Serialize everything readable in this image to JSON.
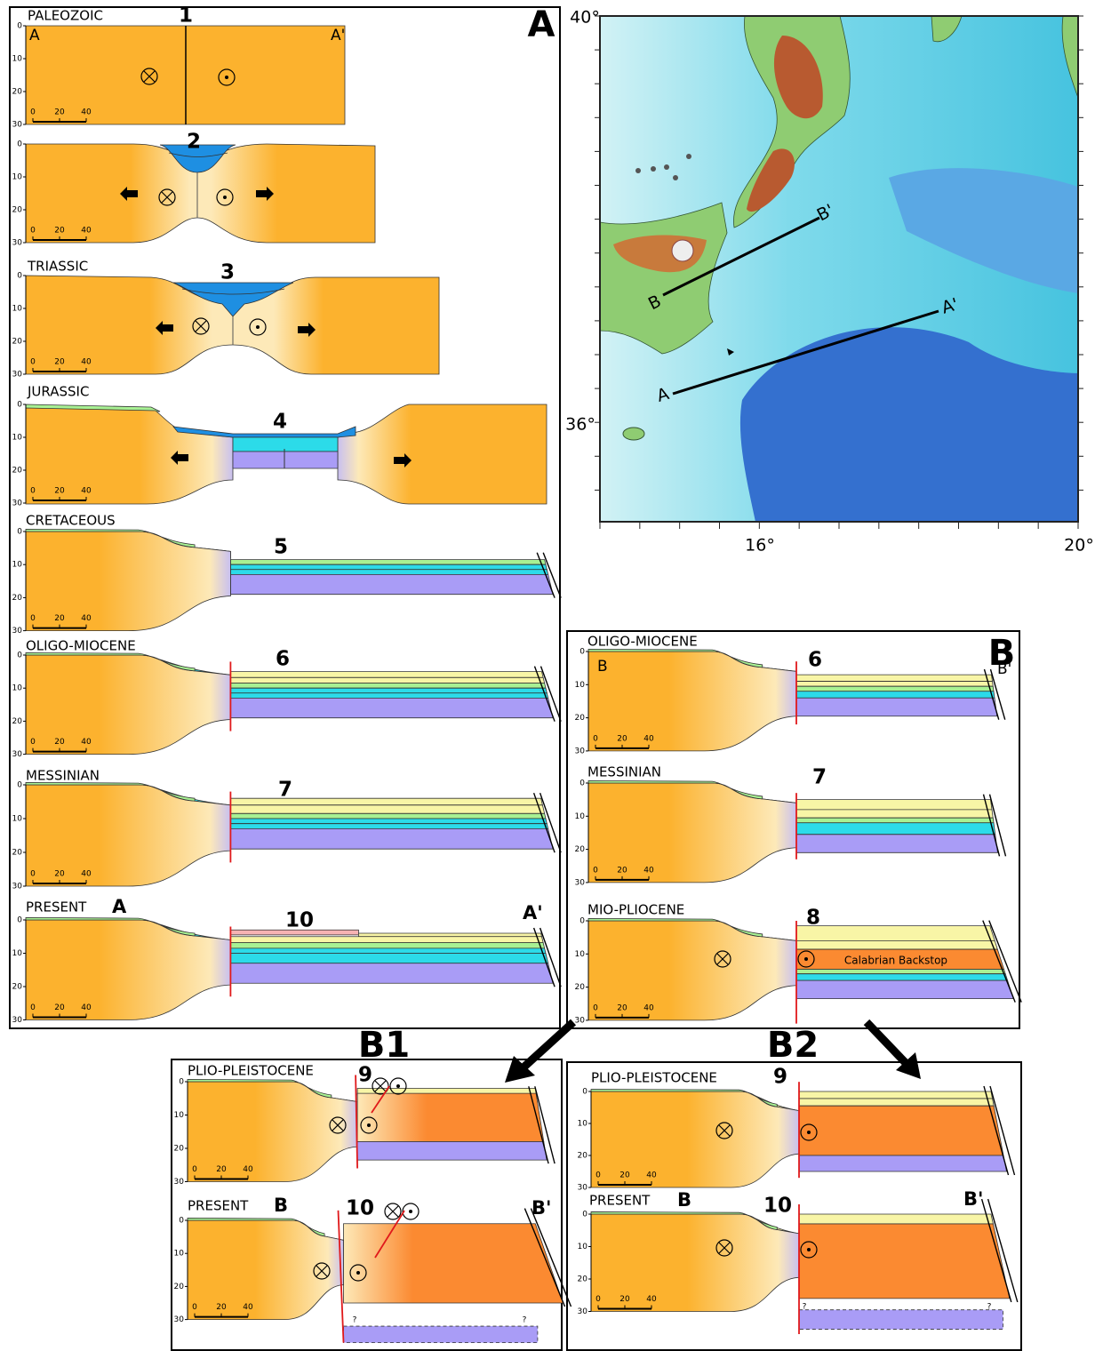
{
  "depth_ticks": [
    0,
    10,
    20,
    30
  ],
  "scale_ticks": [
    0,
    20,
    40
  ],
  "panel_a": {
    "label": "A",
    "sections": [
      {
        "era": "PALEOZOIC",
        "stage": 1,
        "left": "A",
        "right": "A'"
      },
      {
        "stage": 2
      },
      {
        "era": "TRIASSIC",
        "stage": 3
      },
      {
        "era": "JURASSIC",
        "stage": 4
      },
      {
        "era": "CRETACEOUS",
        "stage": 5
      },
      {
        "era": "OLIGO-MIOCENE",
        "stage": 6
      },
      {
        "era": "MESSINIAN",
        "stage": 7
      },
      {
        "era": "PRESENT",
        "left": "A",
        "stage": 10,
        "right": "A'"
      }
    ]
  },
  "map": {
    "lat_labels": [
      "40°",
      "36°"
    ],
    "lon_labels": [
      "16°",
      "20°"
    ],
    "profiles": [
      {
        "start": "B",
        "end": "B'"
      },
      {
        "start": "A",
        "end": "A'"
      }
    ]
  },
  "panel_b": {
    "label": "B",
    "sections": [
      {
        "era": "OLIGO-MIOCENE",
        "stage": 6,
        "left": "B",
        "right": "B'"
      },
      {
        "era": "MESSINIAN",
        "stage": 7
      },
      {
        "era": "MIO-PLIOCENE",
        "stage": 8,
        "unit": "Calabrian Backstop"
      }
    ]
  },
  "panel_b1": {
    "label": "B1",
    "sections": [
      {
        "era": "PLIO-PLEISTOCENE",
        "stage": 9
      },
      {
        "era": "PRESENT",
        "left": "B",
        "stage": 10,
        "right": "B'",
        "unknown": [
          "?",
          "?"
        ]
      }
    ]
  },
  "panel_b2": {
    "label": "B2",
    "sections": [
      {
        "era": "PLIO-PLEISTOCENE",
        "stage": 9
      },
      {
        "era": "PRESENT",
        "left": "B",
        "stage": 10,
        "right": "B'",
        "unknown": [
          "?",
          "?"
        ]
      }
    ]
  }
}
